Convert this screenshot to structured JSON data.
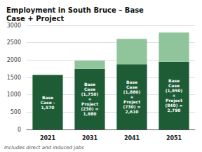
{
  "chart_data": {
    "type": "bar",
    "title": "Employment in South Bruce – Base\nCase + Project",
    "categories": [
      "2021",
      "2031",
      "2041",
      "2051"
    ],
    "stacked": true,
    "series": [
      {
        "color": "#1d5c35",
        "values": [
          1570,
          1750,
          1880,
          1950
        ]
      },
      {
        "color": "#90c49a",
        "values": [
          0,
          230,
          730,
          840
        ]
      }
    ],
    "annotations": [
      {
        "x": "2021",
        "text": "Base\nCase -\n1,570"
      },
      {
        "x": "2031",
        "text": "Base\nCase\n(1,750)\n+\nProject\n(230) =\n1,980"
      },
      {
        "x": "2041",
        "text": "Base\nCase\n(1,880)\n+\nProject\n(730) =\n2,610"
      },
      {
        "x": "2051",
        "text": "Base\nCase\n(1,950)\n+\nProject\n(840) =\n2,790"
      }
    ],
    "footnote": "Includes direct and induced jobs",
    "ylim": [
      0,
      3000
    ],
    "yticks": [
      0,
      500,
      1000,
      1500,
      2000,
      2500,
      3000
    ],
    "grid": true
  }
}
